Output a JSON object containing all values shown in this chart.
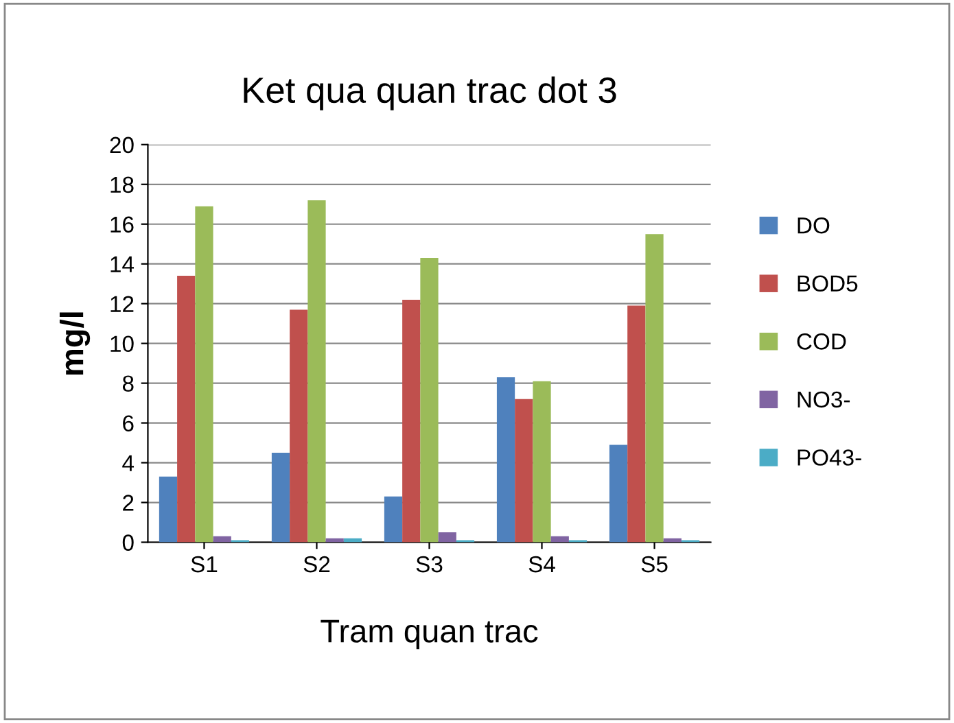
{
  "chart_data": {
    "type": "bar",
    "title": "Ket qua quan trac dot 3",
    "xlabel": "Tram quan trac",
    "ylabel": "mg/l",
    "categories": [
      "S1",
      "S2",
      "S3",
      "S4",
      "S5"
    ],
    "series": [
      {
        "name": "DO",
        "color": "#4f81bd",
        "values": [
          3.3,
          4.5,
          2.3,
          8.3,
          4.9
        ]
      },
      {
        "name": "BOD5",
        "color": "#c0504d",
        "values": [
          13.4,
          11.7,
          12.2,
          7.2,
          11.9
        ]
      },
      {
        "name": "COD",
        "color": "#9bbb59",
        "values": [
          16.9,
          17.2,
          14.3,
          8.1,
          15.5
        ]
      },
      {
        "name": "NO3-",
        "color": "#8064a2",
        "values": [
          0.3,
          0.2,
          0.5,
          0.3,
          0.2
        ]
      },
      {
        "name": "PO43-",
        "color": "#4bacc6",
        "values": [
          0.1,
          0.2,
          0.1,
          0.1,
          0.1
        ]
      }
    ],
    "ylim": [
      0,
      20
    ],
    "yticks": [
      0,
      2,
      4,
      6,
      8,
      10,
      12,
      14,
      16,
      18,
      20
    ],
    "grid": "y",
    "legend": "right"
  }
}
